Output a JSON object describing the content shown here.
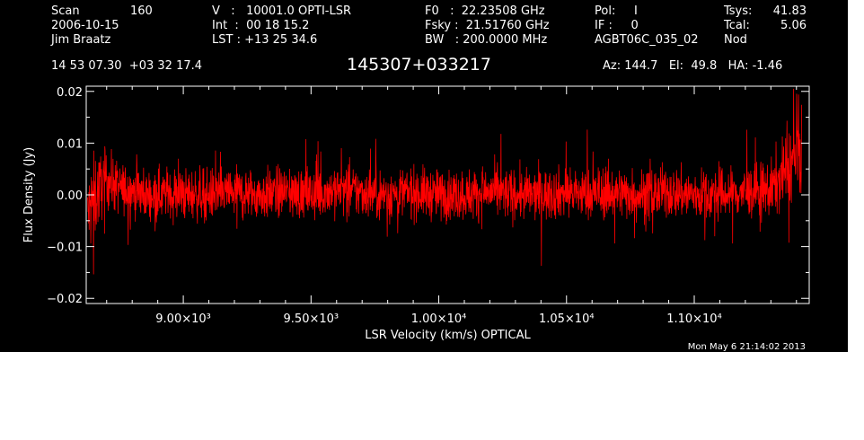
{
  "header": {
    "col1": {
      "scan_label": "Scan",
      "scan_value": "160",
      "date": "2006-10-15",
      "observer": "Jim Braatz"
    },
    "col2": {
      "v": "V   :   10001.0 OPTI-LSR",
      "int": "Int  :  00 18 15.2",
      "lst": "LST : +13 25 34.6"
    },
    "col3": {
      "f0": "F0   :  22.23508 GHz",
      "fsky": "Fsky :  21.51760 GHz",
      "bw": "BW   : 200.0000 MHz"
    },
    "col4": {
      "pol": "Pol:     I",
      "if": "IF :     0",
      "project": "AGBT06C_035_02"
    },
    "col5": {
      "tsys_label": "Tsys:",
      "tsys_value": "41.83",
      "tcal_label": "Tcal:",
      "tcal_value": "5.06",
      "mode": "Nod"
    },
    "coords": "14 53 07.30  +03 32 17.4",
    "source": "145307+033217",
    "pointing": "Az: 144.7   El:  49.8   HA: -1.46"
  },
  "timestamp": "Mon May  6 21:14:02 2013",
  "colors": {
    "background": "#000000",
    "foreground": "#ffffff",
    "trace": "#ff0000"
  },
  "chart_data": {
    "type": "line",
    "title": "",
    "xlabel": "LSR Velocity (km/s) OPTICAL",
    "ylabel": "Flux Density (Jy)",
    "xlim": [
      8620,
      11450
    ],
    "ylim": [
      -0.021,
      0.021
    ],
    "x_ticks": [
      {
        "value": 9000,
        "label": "9.00×10³"
      },
      {
        "value": 9500,
        "label": "9.50×10³"
      },
      {
        "value": 10000,
        "label": "1.00×10⁴"
      },
      {
        "value": 10500,
        "label": "1.05×10⁴"
      },
      {
        "value": 11000,
        "label": "1.10×10⁴"
      }
    ],
    "y_ticks": [
      {
        "value": -0.02,
        "label": "−0.02"
      },
      {
        "value": -0.01,
        "label": "−0.01"
      },
      {
        "value": 0.0,
        "label": "0.00"
      },
      {
        "value": 0.01,
        "label": "0.01"
      },
      {
        "value": 0.02,
        "label": "0.02"
      }
    ],
    "grid": false,
    "series": [
      {
        "color": "#ff0000",
        "x": [
          8625,
          8640,
          8660,
          8680,
          8700,
          8730,
          8760,
          8800,
          8850,
          8900,
          8950,
          9000,
          9100,
          9200,
          9300,
          9400,
          9500,
          9600,
          9700,
          9800,
          9900,
          10000,
          10100,
          10200,
          10300,
          10400,
          10500,
          10600,
          10700,
          10800,
          10900,
          11000,
          11100,
          11200,
          11300,
          11330,
          11360,
          11380,
          11400,
          11420
        ],
        "y": [
          -0.004,
          -0.002,
          0.0,
          0.002,
          0.003,
          0.002,
          0.001,
          0.001,
          0.0,
          0.0,
          0.0005,
          0.0,
          0.0,
          0.0005,
          0.0,
          0.0005,
          0.0,
          0.001,
          0.0005,
          0.0,
          0.0005,
          0.0,
          0.0,
          0.0005,
          0.0,
          0.0,
          0.0005,
          0.0,
          0.0005,
          0.0,
          0.0005,
          0.0,
          0.0,
          0.0005,
          0.001,
          0.003,
          0.005,
          0.006,
          0.007,
          0.008
        ],
        "peak_to_peak": [
          0.02,
          0.026,
          0.022,
          0.018,
          0.016,
          0.015,
          0.014,
          0.014,
          0.014,
          0.014,
          0.014,
          0.014,
          0.014,
          0.014,
          0.014,
          0.014,
          0.014,
          0.014,
          0.014,
          0.014,
          0.014,
          0.014,
          0.014,
          0.014,
          0.014,
          0.014,
          0.014,
          0.014,
          0.014,
          0.014,
          0.014,
          0.014,
          0.014,
          0.014,
          0.016,
          0.018,
          0.02,
          0.022,
          0.024,
          0.024
        ]
      }
    ]
  }
}
